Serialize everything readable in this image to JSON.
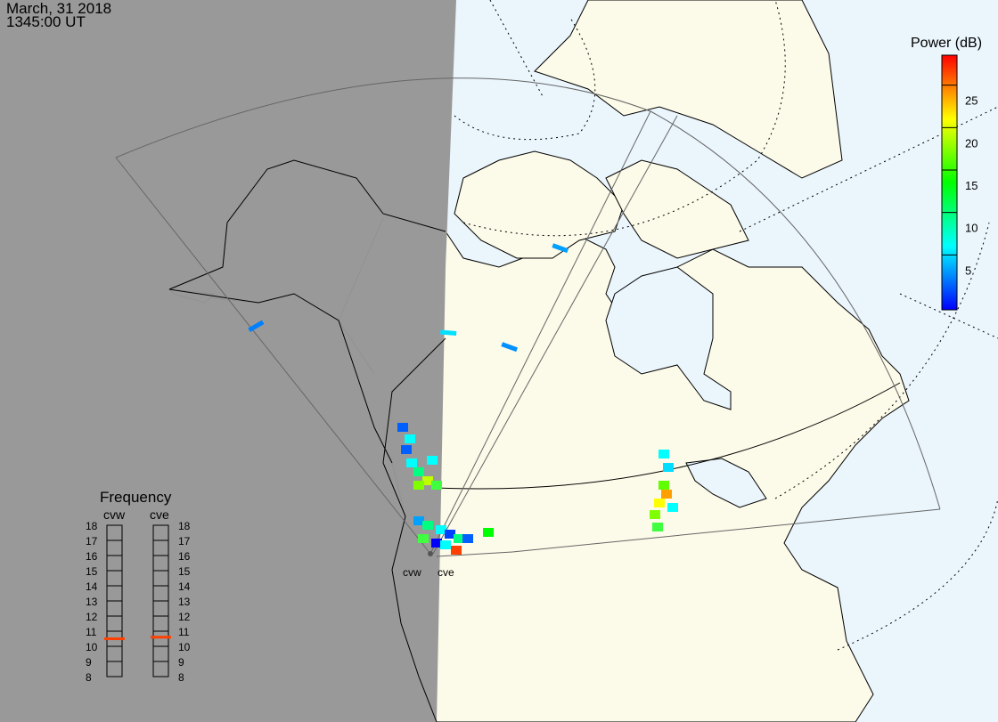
{
  "header": {
    "date": "March, 31 2018",
    "time": "1345:00 UT"
  },
  "colorbar": {
    "title": "Power (dB)",
    "ticks": [
      "25",
      "20",
      "15",
      "10",
      "5"
    ],
    "range": [
      0,
      30
    ],
    "colors": [
      "#0000ff",
      "#0080ff",
      "#00ffff",
      "#00ff80",
      "#00ff00",
      "#80ff00",
      "#ffff00",
      "#ff8000",
      "#ff0000"
    ]
  },
  "frequency": {
    "title": "Frequency",
    "radars": [
      {
        "name": "cvw",
        "value_mhz": 10.5
      },
      {
        "name": "cve",
        "value_mhz": 10.6
      }
    ],
    "ticks": [
      "18",
      "17",
      "16",
      "15",
      "14",
      "13",
      "12",
      "11",
      "10",
      "9",
      "8"
    ],
    "marker_color": "#ff4000"
  },
  "map": {
    "radar_labels": [
      "cvw",
      "cve"
    ],
    "colors": {
      "night": "#969696",
      "ocean": "#eaf5fc",
      "land": "#fcfae8",
      "outline": "#000000",
      "fov": "#666666"
    }
  }
}
